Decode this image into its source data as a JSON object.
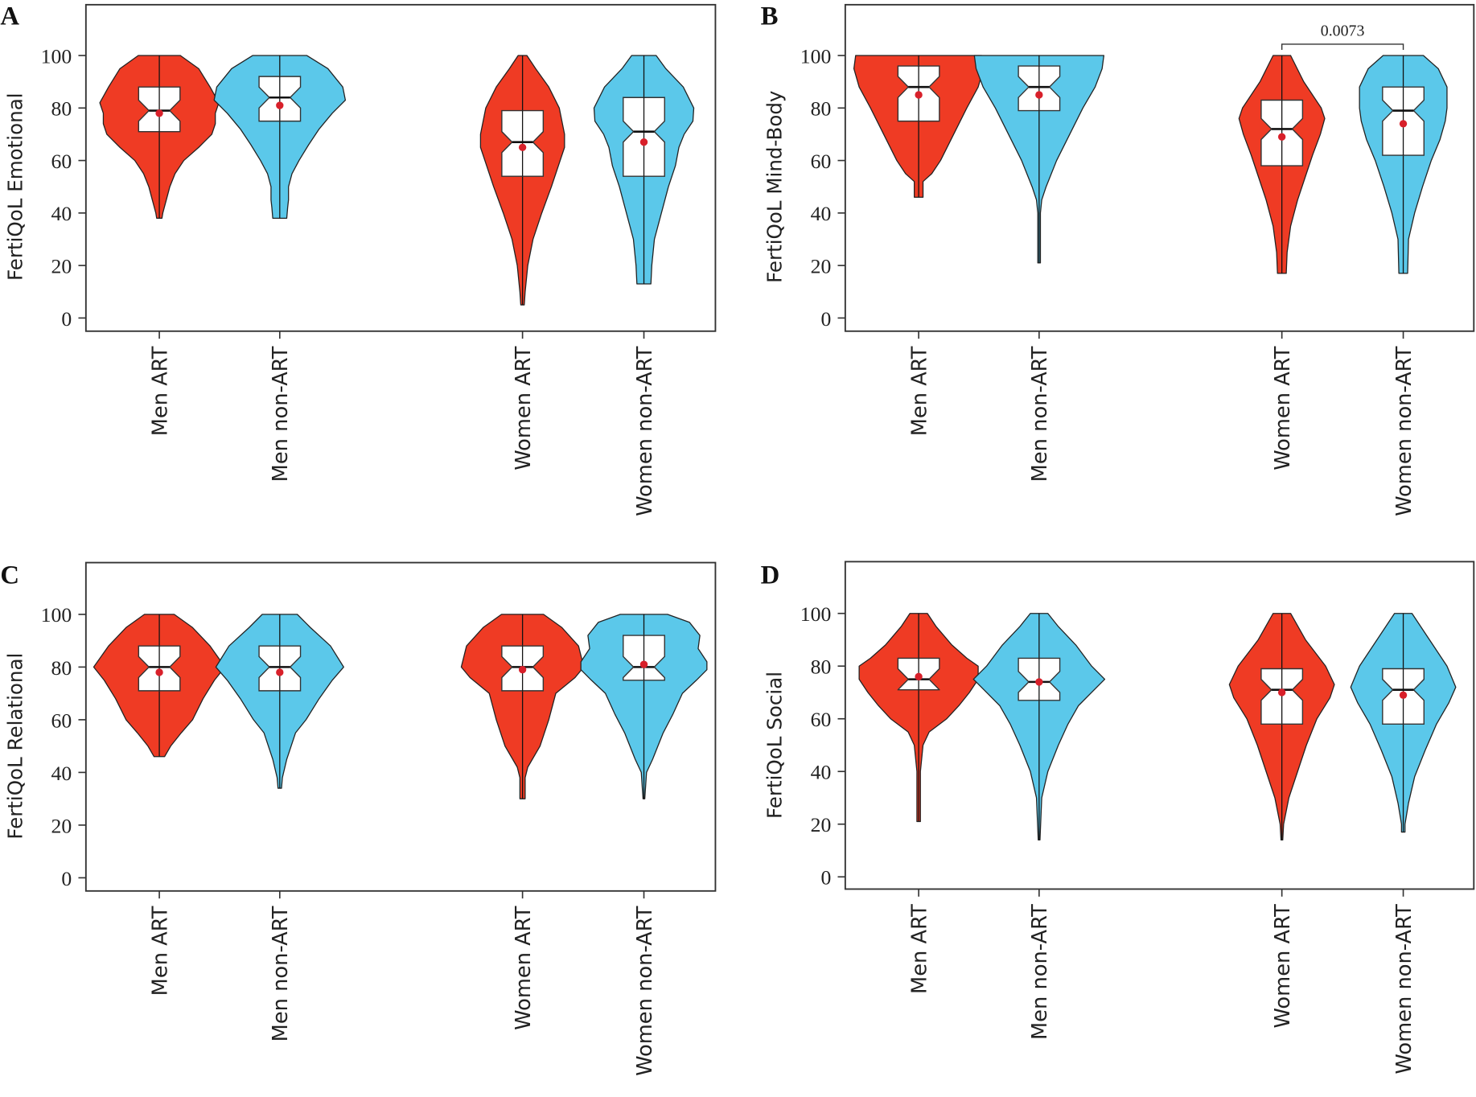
{
  "colors": {
    "art": "#ef3b24",
    "non_art": "#5bc8ea",
    "mean_dot": "#d8202a"
  },
  "chart_data": [
    {
      "panel": "A",
      "type": "violin",
      "ylabel": "FertiQoL Emotional",
      "ylim": [
        0,
        100
      ],
      "yticks": [
        "0",
        "20",
        "40",
        "60",
        "80",
        "100"
      ],
      "categories": [
        "Men ART",
        "Men non-ART",
        "Women ART",
        "Women non-ART"
      ],
      "groups": [
        {
          "group": "art",
          "min": 38,
          "max": 100,
          "q1": 71,
          "median": 79,
          "q3": 88,
          "mean": 78,
          "density": [
            [
              100,
              24
            ],
            [
              95,
              45
            ],
            [
              88,
              58
            ],
            [
              82,
              68
            ],
            [
              78,
              64
            ],
            [
              74,
              64
            ],
            [
              70,
              60
            ],
            [
              65,
              45
            ],
            [
              60,
              28
            ],
            [
              55,
              18
            ],
            [
              50,
              12
            ],
            [
              45,
              8
            ],
            [
              40,
              4
            ],
            [
              38,
              3
            ]
          ]
        },
        {
          "group": "non_art",
          "min": 38,
          "max": 100,
          "q1": 75,
          "median": 84,
          "q3": 92,
          "mean": 81,
          "density": [
            [
              100,
              31
            ],
            [
              95,
              55
            ],
            [
              88,
              72
            ],
            [
              83,
              75
            ],
            [
              78,
              60
            ],
            [
              72,
              45
            ],
            [
              66,
              33
            ],
            [
              60,
              22
            ],
            [
              55,
              14
            ],
            [
              50,
              10
            ],
            [
              45,
              10
            ],
            [
              42,
              9
            ],
            [
              38,
              8
            ]
          ]
        },
        {
          "group": "art",
          "min": 5,
          "max": 100,
          "q1": 54,
          "median": 67,
          "q3": 79,
          "mean": 65,
          "density": [
            [
              100,
              5
            ],
            [
              95,
              15
            ],
            [
              88,
              30
            ],
            [
              80,
              42
            ],
            [
              70,
              48
            ],
            [
              65,
              48
            ],
            [
              60,
              43
            ],
            [
              50,
              33
            ],
            [
              40,
              22
            ],
            [
              30,
              12
            ],
            [
              20,
              6
            ],
            [
              10,
              3
            ],
            [
              5,
              2
            ]
          ]
        },
        {
          "group": "non_art",
          "min": 13,
          "max": 100,
          "q1": 54,
          "median": 71,
          "q3": 84,
          "mean": 67,
          "density": [
            [
              100,
              14
            ],
            [
              95,
              25
            ],
            [
              88,
              45
            ],
            [
              80,
              57
            ],
            [
              75,
              56
            ],
            [
              70,
              46
            ],
            [
              65,
              40
            ],
            [
              58,
              36
            ],
            [
              50,
              28
            ],
            [
              40,
              20
            ],
            [
              30,
              12
            ],
            [
              20,
              9
            ],
            [
              13,
              8
            ]
          ]
        }
      ],
      "annotations": []
    },
    {
      "panel": "B",
      "type": "violin",
      "ylabel": "FertiQoL Mind-Body",
      "ylim": [
        0,
        100
      ],
      "yticks": [
        "0",
        "20",
        "40",
        "60",
        "80",
        "100"
      ],
      "categories": [
        "Men ART",
        "Men non-ART",
        "Women ART",
        "Women non-ART"
      ],
      "groups": [
        {
          "group": "art",
          "min": 46,
          "max": 100,
          "q1": 75,
          "median": 88,
          "q3": 96,
          "mean": 85,
          "density": [
            [
              100,
              72
            ],
            [
              95,
              74
            ],
            [
              88,
              68
            ],
            [
              80,
              55
            ],
            [
              70,
              40
            ],
            [
              60,
              25
            ],
            [
              55,
              15
            ],
            [
              52,
              5
            ],
            [
              46,
              5
            ]
          ]
        },
        {
          "group": "non_art",
          "min": 21,
          "max": 100,
          "q1": 79,
          "median": 88,
          "q3": 96,
          "mean": 85,
          "density": [
            [
              100,
              74
            ],
            [
              95,
              72
            ],
            [
              88,
              64
            ],
            [
              80,
              50
            ],
            [
              70,
              35
            ],
            [
              60,
              20
            ],
            [
              50,
              8
            ],
            [
              45,
              3
            ],
            [
              40,
              1.5
            ],
            [
              21,
              1.5
            ]
          ]
        },
        {
          "group": "art",
          "min": 17,
          "max": 100,
          "q1": 58,
          "median": 72,
          "q3": 83,
          "mean": 69,
          "density": [
            [
              100,
              10
            ],
            [
              90,
              25
            ],
            [
              80,
              45
            ],
            [
              76,
              49
            ],
            [
              70,
              44
            ],
            [
              62,
              35
            ],
            [
              55,
              28
            ],
            [
              45,
              18
            ],
            [
              35,
              10
            ],
            [
              25,
              6
            ],
            [
              17,
              5
            ]
          ]
        },
        {
          "group": "non_art",
          "min": 17,
          "max": 100,
          "q1": 62,
          "median": 79,
          "q3": 88,
          "mean": 74,
          "density": [
            [
              100,
              23
            ],
            [
              95,
              40
            ],
            [
              88,
              50
            ],
            [
              80,
              50
            ],
            [
              75,
              48
            ],
            [
              68,
              42
            ],
            [
              60,
              32
            ],
            [
              50,
              22
            ],
            [
              40,
              13
            ],
            [
              30,
              6
            ],
            [
              17,
              5
            ]
          ]
        }
      ],
      "annotations": [
        {
          "between": [
            "Women ART",
            "Women non-ART"
          ],
          "label": "0.0073"
        }
      ]
    },
    {
      "panel": "C",
      "type": "violin",
      "ylabel": "FertiQoL Relational",
      "ylim": [
        0,
        100
      ],
      "yticks": [
        "0",
        "20",
        "40",
        "60",
        "80",
        "100"
      ],
      "categories": [
        "Men ART",
        "Men non-ART",
        "Women ART",
        "Women non-ART"
      ],
      "groups": [
        {
          "group": "art",
          "min": 46,
          "max": 100,
          "q1": 71,
          "median": 80,
          "q3": 88,
          "mean": 78,
          "density": [
            [
              100,
              17
            ],
            [
              95,
              38
            ],
            [
              88,
              58
            ],
            [
              80,
              75
            ],
            [
              75,
              63
            ],
            [
              68,
              50
            ],
            [
              60,
              38
            ],
            [
              55,
              25
            ],
            [
              50,
              13
            ],
            [
              46,
              6
            ]
          ]
        },
        {
          "group": "non_art",
          "min": 34,
          "max": 100,
          "q1": 71,
          "median": 80,
          "q3": 88,
          "mean": 78,
          "density": [
            [
              100,
              20
            ],
            [
              95,
              35
            ],
            [
              88,
              58
            ],
            [
              80,
              73
            ],
            [
              75,
              60
            ],
            [
              68,
              45
            ],
            [
              60,
              30
            ],
            [
              55,
              18
            ],
            [
              45,
              8
            ],
            [
              38,
              3
            ],
            [
              34,
              2
            ]
          ]
        },
        {
          "group": "art",
          "min": 30,
          "max": 100,
          "q1": 71,
          "median": 80,
          "q3": 88,
          "mean": 79,
          "density": [
            [
              100,
              24
            ],
            [
              95,
              45
            ],
            [
              88,
              64
            ],
            [
              80,
              70
            ],
            [
              76,
              60
            ],
            [
              70,
              38
            ],
            [
              60,
              30
            ],
            [
              50,
              20
            ],
            [
              42,
              6
            ],
            [
              38,
              3
            ],
            [
              30,
              3
            ]
          ]
        },
        {
          "group": "non_art",
          "min": 30,
          "max": 100,
          "q1": 75,
          "median": 80,
          "q3": 92,
          "mean": 81,
          "density": [
            [
              100,
              27
            ],
            [
              97,
              52
            ],
            [
              92,
              64
            ],
            [
              87,
              62
            ],
            [
              82,
              72
            ],
            [
              79,
              72
            ],
            [
              75,
              60
            ],
            [
              70,
              44
            ],
            [
              62,
              33
            ],
            [
              55,
              22
            ],
            [
              45,
              10
            ],
            [
              40,
              3
            ],
            [
              30,
              1
            ]
          ]
        }
      ],
      "annotations": []
    },
    {
      "panel": "D",
      "type": "violin",
      "ylabel": "FertiQoL Social",
      "ylim": [
        0,
        100
      ],
      "yticks": [
        "0",
        "20",
        "40",
        "60",
        "80",
        "100"
      ],
      "categories": [
        "Men ART",
        "Men non-ART",
        "Women ART",
        "Women non-ART"
      ],
      "groups": [
        {
          "group": "art",
          "min": 21,
          "max": 100,
          "q1": 71,
          "median": 75,
          "q3": 83,
          "mean": 76,
          "density": [
            [
              100,
              10
            ],
            [
              95,
              20
            ],
            [
              88,
              38
            ],
            [
              83,
              55
            ],
            [
              80,
              68
            ],
            [
              75,
              68
            ],
            [
              70,
              58
            ],
            [
              65,
              46
            ],
            [
              60,
              32
            ],
            [
              55,
              12
            ],
            [
              50,
              5
            ],
            [
              40,
              2
            ],
            [
              21,
              2
            ]
          ]
        },
        {
          "group": "non_art",
          "min": 14,
          "max": 100,
          "q1": 67,
          "median": 74,
          "q3": 83,
          "mean": 74,
          "density": [
            [
              100,
              10
            ],
            [
              95,
              22
            ],
            [
              88,
              42
            ],
            [
              80,
              60
            ],
            [
              75,
              75
            ],
            [
              70,
              60
            ],
            [
              65,
              45
            ],
            [
              58,
              33
            ],
            [
              50,
              22
            ],
            [
              40,
              10
            ],
            [
              30,
              3
            ],
            [
              14,
              1
            ]
          ]
        },
        {
          "group": "art",
          "min": 14,
          "max": 100,
          "q1": 58,
          "median": 71,
          "q3": 79,
          "mean": 70,
          "density": [
            [
              100,
              10
            ],
            [
              90,
              27
            ],
            [
              80,
              50
            ],
            [
              73,
              60
            ],
            [
              68,
              55
            ],
            [
              60,
              40
            ],
            [
              50,
              28
            ],
            [
              40,
              18
            ],
            [
              30,
              8
            ],
            [
              20,
              2
            ],
            [
              14,
              1
            ]
          ]
        },
        {
          "group": "non_art",
          "min": 17,
          "max": 100,
          "q1": 58,
          "median": 71,
          "q3": 79,
          "mean": 69,
          "density": [
            [
              100,
              10
            ],
            [
              90,
              30
            ],
            [
              80,
              50
            ],
            [
              72,
              60
            ],
            [
              66,
              52
            ],
            [
              58,
              38
            ],
            [
              48,
              25
            ],
            [
              38,
              13
            ],
            [
              28,
              6
            ],
            [
              20,
              2
            ],
            [
              17,
              2
            ]
          ]
        }
      ],
      "annotations": []
    }
  ]
}
